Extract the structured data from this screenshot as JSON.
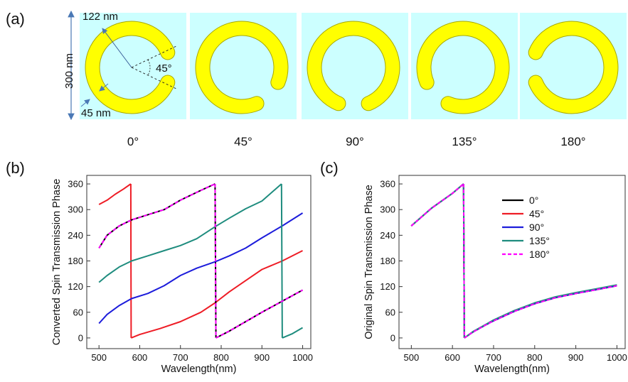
{
  "panel_a": {
    "label": "(a)",
    "height_label": "300 nm",
    "radius_label": "122 nm",
    "width_label": "45 nm",
    "angle_label": "45°",
    "rotations": [
      "0°",
      "45°",
      "90°",
      "135°",
      "180°"
    ],
    "rotation_values_deg": [
      0,
      45,
      90,
      135,
      180
    ],
    "tile_color": "#ccffff",
    "ring_color": "#ffff00",
    "ring_stroke": "#a8a800"
  },
  "chart_data": [
    {
      "panel_label": "(b)",
      "type": "line",
      "title": "",
      "xlabel": "Wavelength(nm)",
      "ylabel": "Converted Spin Transmission Phase",
      "xlim": [
        470,
        1020
      ],
      "ylim": [
        -25,
        380
      ],
      "xticks": [
        500,
        600,
        700,
        800,
        900,
        1000
      ],
      "yticks": [
        0,
        60,
        120,
        180,
        240,
        300,
        360
      ],
      "grid": false,
      "series": [
        {
          "color": "#ee1c25",
          "dashed": false,
          "segments": [
            [
              [
                500,
                312
              ],
              [
                520,
                322
              ],
              [
                540,
                336
              ],
              [
                560,
                348
              ],
              [
                578,
                360
              ]
            ],
            [
              [
                578,
                360
              ],
              [
                579,
                0
              ]
            ],
            [
              [
                579,
                0
              ],
              [
                600,
                8
              ],
              [
                650,
                22
              ],
              [
                700,
                38
              ],
              [
                750,
                60
              ],
              [
                785,
                82
              ],
              [
                820,
                108
              ],
              [
                860,
                134
              ],
              [
                900,
                160
              ],
              [
                950,
                180
              ],
              [
                1000,
                204
              ]
            ]
          ]
        },
        {
          "color": "#000000",
          "dashed": false,
          "segments": [
            [
              [
                500,
                210
              ],
              [
                520,
                240
              ],
              [
                550,
                262
              ],
              [
                580,
                276
              ],
              [
                620,
                288
              ],
              [
                660,
                300
              ],
              [
                700,
                322
              ],
              [
                750,
                345
              ],
              [
                785,
                360
              ]
            ],
            [
              [
                785,
                360
              ],
              [
                787,
                0
              ]
            ],
            [
              [
                787,
                0
              ],
              [
                820,
                16
              ],
              [
                860,
                38
              ],
              [
                900,
                60
              ],
              [
                950,
                86
              ],
              [
                1000,
                112
              ]
            ]
          ]
        },
        {
          "color": "#1c1cdb",
          "dashed": false,
          "segments": [
            [
              [
                500,
                34
              ],
              [
                520,
                55
              ],
              [
                550,
                76
              ],
              [
                580,
                92
              ],
              [
                620,
                104
              ],
              [
                660,
                122
              ],
              [
                700,
                146
              ],
              [
                740,
                163
              ],
              [
                785,
                178
              ],
              [
                820,
                192
              ],
              [
                860,
                210
              ],
              [
                900,
                234
              ],
              [
                950,
                262
              ],
              [
                1000,
                292
              ]
            ]
          ]
        },
        {
          "color": "#1e8c7e",
          "dashed": false,
          "segments": [
            [
              [
                500,
                130
              ],
              [
                520,
                146
              ],
              [
                550,
                166
              ],
              [
                580,
                180
              ],
              [
                620,
                192
              ],
              [
                660,
                204
              ],
              [
                700,
                216
              ],
              [
                740,
                232
              ],
              [
                785,
                260
              ],
              [
                820,
                280
              ],
              [
                860,
                302
              ],
              [
                900,
                320
              ],
              [
                948,
                360
              ]
            ],
            [
              [
                948,
                360
              ],
              [
                950,
                0
              ]
            ],
            [
              [
                950,
                0
              ],
              [
                975,
                10
              ],
              [
                1000,
                24
              ]
            ]
          ]
        },
        {
          "color": "#ff00ff",
          "dashed": true,
          "segments": [
            [
              [
                500,
                210
              ],
              [
                520,
                240
              ],
              [
                550,
                262
              ],
              [
                580,
                276
              ],
              [
                620,
                288
              ],
              [
                660,
                300
              ],
              [
                700,
                322
              ],
              [
                750,
                345
              ],
              [
                785,
                360
              ]
            ],
            [
              [
                785,
                360
              ],
              [
                787,
                0
              ]
            ],
            [
              [
                787,
                0
              ],
              [
                820,
                16
              ],
              [
                860,
                38
              ],
              [
                900,
                60
              ],
              [
                950,
                86
              ],
              [
                1000,
                112
              ]
            ]
          ]
        }
      ]
    },
    {
      "panel_label": "(c)",
      "type": "line",
      "title": "",
      "xlabel": "Wavelength(nm)",
      "ylabel": "Original Spin Transmission Phase",
      "xlim": [
        470,
        1020
      ],
      "ylim": [
        -25,
        380
      ],
      "xticks": [
        500,
        600,
        700,
        800,
        900,
        1000
      ],
      "yticks": [
        0,
        60,
        120,
        180,
        240,
        300,
        360
      ],
      "grid": false,
      "legend_position": "upper-right",
      "series": [
        {
          "name": "0°",
          "color": "#000000",
          "dashed": false,
          "segments": [
            [
              [
                500,
                262
              ],
              [
                550,
                304
              ],
              [
                600,
                338
              ],
              [
                627,
                360
              ]
            ],
            [
              [
                627,
                360
              ],
              [
                629,
                0
              ]
            ],
            [
              [
                629,
                0
              ],
              [
                650,
                14
              ],
              [
                680,
                30
              ],
              [
                700,
                40
              ],
              [
                750,
                62
              ],
              [
                800,
                80
              ],
              [
                850,
                94
              ],
              [
                900,
                104
              ],
              [
                950,
                113
              ],
              [
                1000,
                122
              ]
            ]
          ]
        },
        {
          "name": "45°",
          "color": "#ee1c25",
          "dashed": false,
          "segments": [
            [
              [
                500,
                262
              ],
              [
                550,
                304
              ],
              [
                600,
                338
              ],
              [
                627,
                360
              ]
            ],
            [
              [
                627,
                360
              ],
              [
                629,
                0
              ]
            ],
            [
              [
                629,
                0
              ],
              [
                650,
                14
              ],
              [
                680,
                30
              ],
              [
                700,
                40
              ],
              [
                750,
                62
              ],
              [
                800,
                80
              ],
              [
                850,
                94
              ],
              [
                900,
                104
              ],
              [
                950,
                113
              ],
              [
                1000,
                122
              ]
            ]
          ]
        },
        {
          "name": "90°",
          "color": "#1c1cdb",
          "dashed": false,
          "segments": [
            [
              [
                500,
                262
              ],
              [
                550,
                304
              ],
              [
                600,
                338
              ],
              [
                627,
                360
              ]
            ],
            [
              [
                627,
                360
              ],
              [
                629,
                0
              ]
            ],
            [
              [
                629,
                0
              ],
              [
                650,
                14
              ],
              [
                680,
                30
              ],
              [
                700,
                40
              ],
              [
                750,
                62
              ],
              [
                800,
                80
              ],
              [
                850,
                94
              ],
              [
                900,
                104
              ],
              [
                950,
                113
              ],
              [
                1000,
                122
              ]
            ]
          ]
        },
        {
          "name": "135°",
          "color": "#1e8c7e",
          "dashed": false,
          "segments": [
            [
              [
                500,
                262
              ],
              [
                550,
                304
              ],
              [
                600,
                338
              ],
              [
                627,
                360
              ]
            ],
            [
              [
                627,
                360
              ],
              [
                629,
                0
              ]
            ],
            [
              [
                629,
                0
              ],
              [
                650,
                15
              ],
              [
                680,
                31
              ],
              [
                700,
                42
              ],
              [
                750,
                64
              ],
              [
                800,
                82
              ],
              [
                850,
                96
              ],
              [
                900,
                106
              ],
              [
                950,
                115
              ],
              [
                1000,
                124
              ]
            ]
          ]
        },
        {
          "name": "180°",
          "color": "#ff00ff",
          "dashed": true,
          "segments": [
            [
              [
                500,
                262
              ],
              [
                550,
                304
              ],
              [
                600,
                338
              ],
              [
                627,
                360
              ]
            ],
            [
              [
                627,
                360
              ],
              [
                629,
                0
              ]
            ],
            [
              [
                629,
                0
              ],
              [
                650,
                14
              ],
              [
                680,
                30
              ],
              [
                700,
                40
              ],
              [
                750,
                62
              ],
              [
                800,
                80
              ],
              [
                850,
                94
              ],
              [
                900,
                104
              ],
              [
                950,
                113
              ],
              [
                1000,
                122
              ]
            ]
          ]
        }
      ]
    }
  ]
}
